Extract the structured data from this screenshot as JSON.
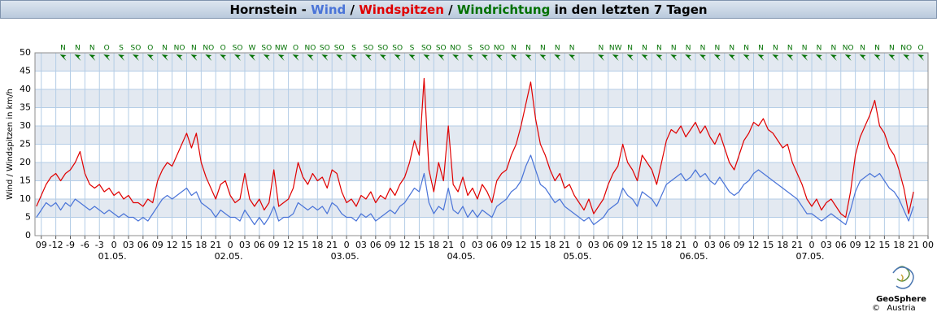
{
  "chart_data": {
    "type": "line",
    "title_prefix": "Hornstein -",
    "title_separator": "/",
    "direction_name": "Windrichtung",
    "direction_color": "#007000",
    "title_suffix": "in den letzten 7 Tagen",
    "ylabel": "Wind / Windspitzen in km/h",
    "xlim": [
      -16.3,
      168
    ],
    "ylim": [
      0,
      50
    ],
    "yticks": [
      0,
      5,
      10,
      15,
      20,
      25,
      30,
      35,
      40,
      45,
      50
    ],
    "grid": true,
    "xticks": [
      {
        "value": -15,
        "label": "09"
      },
      -12,
      -9,
      -6,
      -3,
      0,
      {
        "value": 3,
        "label": "03"
      },
      {
        "value": 6,
        "label": "06"
      },
      {
        "value": 9,
        "label": "09"
      },
      12,
      15,
      18,
      21,
      {
        "value": 24,
        "label": "0"
      },
      {
        "value": 27,
        "label": "03"
      },
      {
        "value": 30,
        "label": "06"
      },
      {
        "value": 33,
        "label": "09"
      },
      {
        "value": 36,
        "label": "12"
      },
      {
        "value": 39,
        "label": "15"
      },
      {
        "value": 42,
        "label": "18"
      },
      {
        "value": 45,
        "label": "21"
      },
      {
        "value": 48,
        "label": "0"
      },
      {
        "value": 51,
        "label": "03"
      },
      {
        "value": 54,
        "label": "06"
      },
      {
        "value": 57,
        "label": "09"
      },
      {
        "value": 60,
        "label": "12"
      },
      {
        "value": 63,
        "label": "15"
      },
      {
        "value": 66,
        "label": "18"
      },
      {
        "value": 69,
        "label": "21"
      },
      {
        "value": 72,
        "label": "0"
      },
      {
        "value": 75,
        "label": "03"
      },
      {
        "value": 78,
        "label": "06"
      },
      {
        "value": 81,
        "label": "09"
      },
      {
        "value": 84,
        "label": "12"
      },
      {
        "value": 87,
        "label": "15"
      },
      {
        "value": 90,
        "label": "18"
      },
      {
        "value": 93,
        "label": "21"
      },
      {
        "value": 96,
        "label": "0"
      },
      {
        "value": 99,
        "label": "03"
      },
      {
        "value": 102,
        "label": "06"
      },
      {
        "value": 105,
        "label": "09"
      },
      {
        "value": 108,
        "label": "12"
      },
      {
        "value": 111,
        "label": "15"
      },
      {
        "value": 114,
        "label": "18"
      },
      {
        "value": 117,
        "label": "21"
      },
      {
        "value": 120,
        "label": "0"
      },
      {
        "value": 123,
        "label": "03"
      },
      {
        "value": 126,
        "label": "06"
      },
      {
        "value": 129,
        "label": "09"
      },
      {
        "value": 132,
        "label": "12"
      },
      {
        "value": 135,
        "label": "15"
      },
      {
        "value": 138,
        "label": "18"
      },
      {
        "value": 141,
        "label": "21"
      },
      {
        "value": 144,
        "label": "0"
      },
      {
        "value": 147,
        "label": "03"
      },
      {
        "value": 150,
        "label": "06"
      },
      {
        "value": 153,
        "label": "09"
      },
      {
        "value": 156,
        "label": "12"
      },
      {
        "value": 159,
        "label": "15"
      },
      {
        "value": 162,
        "label": "18"
      },
      {
        "value": 165,
        "label": "21"
      },
      {
        "value": 168,
        "label": "00"
      }
    ],
    "date_ticks": [
      {
        "value": 0,
        "label": "01.05."
      },
      {
        "value": 24,
        "label": "02.05."
      },
      {
        "value": 48,
        "label": "03.05."
      },
      {
        "value": 72,
        "label": "04.05."
      },
      {
        "value": 96,
        "label": "05.05."
      },
      {
        "value": 120,
        "label": "06.05."
      },
      {
        "value": 144,
        "label": "07.05."
      }
    ],
    "x": [
      -16,
      -15,
      -14,
      -13,
      -12,
      -11,
      -10,
      -9,
      -8,
      -7,
      -6,
      -5,
      -4,
      -3,
      -2,
      -1,
      0,
      1,
      2,
      3,
      4,
      5,
      6,
      7,
      8,
      9,
      10,
      11,
      12,
      13,
      14,
      15,
      16,
      17,
      18,
      19,
      20,
      21,
      22,
      23,
      24,
      25,
      26,
      27,
      28,
      29,
      30,
      31,
      32,
      33,
      34,
      35,
      36,
      37,
      38,
      39,
      40,
      41,
      42,
      43,
      44,
      45,
      46,
      47,
      48,
      49,
      50,
      51,
      52,
      53,
      54,
      55,
      56,
      57,
      58,
      59,
      60,
      61,
      62,
      63,
      64,
      65,
      66,
      67,
      68,
      69,
      70,
      71,
      72,
      73,
      74,
      75,
      76,
      77,
      78,
      79,
      80,
      81,
      82,
      83,
      84,
      85,
      86,
      87,
      88,
      89,
      90,
      91,
      92,
      93,
      94,
      95,
      96,
      97,
      98,
      99,
      100,
      101,
      102,
      103,
      104,
      105,
      106,
      107,
      108,
      109,
      110,
      111,
      112,
      113,
      114,
      115,
      116,
      117,
      118,
      119,
      120,
      121,
      122,
      123,
      124,
      125,
      126,
      127,
      128,
      129,
      130,
      131,
      132,
      133,
      134,
      135,
      136,
      137,
      138,
      139,
      140,
      141,
      142,
      143,
      144,
      145,
      146,
      147,
      148,
      149,
      150,
      151,
      152,
      153,
      154,
      155,
      156,
      157,
      158,
      159,
      160,
      161,
      162,
      163,
      164,
      165
    ],
    "series": [
      {
        "name": "Wind",
        "color": "#4a74d8",
        "values": [
          5,
          7,
          9,
          8,
          9,
          7,
          9,
          8,
          10,
          9,
          8,
          7,
          8,
          7,
          6,
          7,
          6,
          5,
          6,
          5,
          5,
          4,
          5,
          4,
          6,
          8,
          10,
          11,
          10,
          11,
          12,
          13,
          11,
          12,
          9,
          8,
          7,
          5,
          7,
          6,
          5,
          5,
          4,
          7,
          5,
          3,
          5,
          3,
          5,
          8,
          4,
          5,
          5,
          6,
          9,
          8,
          7,
          8,
          7,
          8,
          6,
          9,
          8,
          6,
          5,
          5,
          4,
          6,
          5,
          6,
          4,
          5,
          6,
          7,
          6,
          8,
          9,
          11,
          13,
          12,
          17,
          9,
          6,
          8,
          7,
          13,
          7,
          6,
          8,
          5,
          7,
          5,
          7,
          6,
          5,
          8,
          9,
          10,
          12,
          13,
          15,
          19,
          22,
          18,
          14,
          13,
          11,
          9,
          10,
          8,
          7,
          6,
          5,
          4,
          5,
          3,
          4,
          5,
          7,
          8,
          9,
          13,
          11,
          10,
          8,
          12,
          11,
          10,
          8,
          11,
          14,
          15,
          16,
          17,
          15,
          16,
          18,
          16,
          17,
          15,
          14,
          16,
          14,
          12,
          11,
          12,
          14,
          15,
          17,
          18,
          17,
          16,
          15,
          14,
          13,
          12,
          11,
          10,
          8,
          6,
          6,
          5,
          4,
          5,
          6,
          5,
          4,
          3,
          7,
          12,
          15,
          16,
          17,
          16,
          17,
          15,
          13,
          12,
          10,
          7,
          4,
          8
        ]
      },
      {
        "name": "Windspitzen",
        "color": "#e00000",
        "values": [
          8,
          11,
          14,
          16,
          17,
          15,
          17,
          18,
          20,
          23,
          17,
          14,
          13,
          14,
          12,
          13,
          11,
          12,
          10,
          11,
          9,
          9,
          8,
          10,
          9,
          15,
          18,
          20,
          19,
          22,
          25,
          28,
          24,
          28,
          20,
          16,
          13,
          10,
          14,
          15,
          11,
          9,
          10,
          17,
          10,
          8,
          10,
          7,
          9,
          18,
          8,
          9,
          10,
          13,
          20,
          16,
          14,
          17,
          15,
          16,
          13,
          18,
          17,
          12,
          9,
          10,
          8,
          11,
          10,
          12,
          9,
          11,
          10,
          13,
          11,
          14,
          16,
          20,
          26,
          22,
          43,
          18,
          12,
          20,
          15,
          30,
          14,
          12,
          16,
          11,
          13,
          10,
          14,
          12,
          9,
          15,
          17,
          18,
          22,
          25,
          30,
          36,
          42,
          32,
          25,
          22,
          18,
          15,
          17,
          13,
          14,
          11,
          9,
          7,
          10,
          6,
          8,
          10,
          14,
          17,
          19,
          25,
          20,
          18,
          15,
          22,
          20,
          18,
          14,
          20,
          26,
          29,
          28,
          30,
          27,
          29,
          31,
          28,
          30,
          27,
          25,
          28,
          24,
          20,
          18,
          22,
          26,
          28,
          31,
          30,
          32,
          29,
          28,
          26,
          24,
          25,
          20,
          17,
          14,
          10,
          8,
          10,
          7,
          9,
          10,
          8,
          6,
          5,
          12,
          22,
          27,
          30,
          33,
          37,
          30,
          28,
          24,
          22,
          18,
          13,
          6,
          12
        ]
      }
    ],
    "direction_x": [
      -10.5,
      -7.5,
      -4.5,
      -1.5,
      1.5,
      4.5,
      7.5,
      10.5,
      13.5,
      16.5,
      19.5,
      22.5,
      25.5,
      28.5,
      31.5,
      34.5,
      37.5,
      40.5,
      43.5,
      46.5,
      49.5,
      52.5,
      55.5,
      58.5,
      61.5,
      64.5,
      67.5,
      70.5,
      73.5,
      76.5,
      79.5,
      82.5,
      85.5,
      88.5,
      91.5,
      94.5,
      97.5,
      100.5,
      103.5,
      106.5,
      109.5,
      112.5,
      115.5,
      118.5,
      121.5,
      124.5,
      127.5,
      130.5,
      133.5,
      136.5,
      139.5,
      142.5,
      145.5,
      148.5,
      151.5,
      154.5,
      157.5,
      160.5,
      163.5,
      166.5
    ],
    "directions": [
      "N",
      "N",
      "N",
      "O",
      "S",
      "SO",
      "O",
      "N",
      "NO",
      "N",
      "NO",
      "O",
      "SO",
      "W",
      "SO",
      "NW",
      "O",
      "NO",
      "SO",
      "SO",
      "S",
      "SO",
      "SO",
      "SO",
      "S",
      "SO",
      "SO",
      "NO",
      "S",
      "SO",
      "NO",
      "N",
      "N",
      "N",
      "N",
      "N",
      null,
      "N",
      "NW",
      "N",
      "N",
      "N",
      "N",
      "N",
      "N",
      "N",
      "N",
      "N",
      "N",
      "N",
      "N",
      "N",
      "N",
      "N",
      "NO",
      "N",
      "N",
      "N",
      "NO",
      "O"
    ],
    "logo_name": "GeoSphere",
    "logo_sub": "Austria",
    "copyright": "©"
  }
}
